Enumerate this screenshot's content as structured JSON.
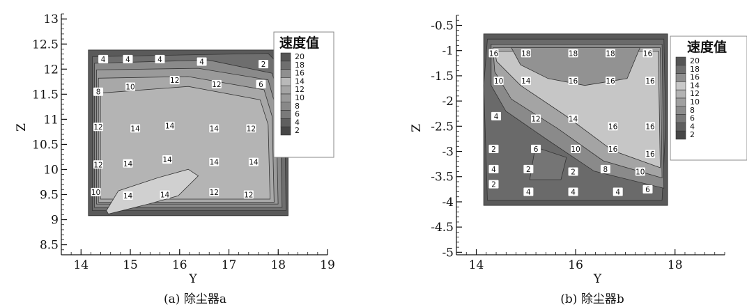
{
  "chart_data": [
    {
      "type": "heatmap",
      "id": "a",
      "caption": "(a) 除尘器a",
      "xlabel": "Y",
      "ylabel": "Z",
      "xlim": [
        13.6,
        19.0
      ],
      "ylim": [
        8.3,
        13.1
      ],
      "xticks": [
        "14",
        "15",
        "16",
        "17",
        "18",
        "19"
      ],
      "xtick_values": [
        14,
        15,
        16,
        17,
        18,
        19
      ],
      "yticks": [
        "8.5",
        "9",
        "9.5",
        "10",
        "10.5",
        "11",
        "11.5",
        "12",
        "12.5",
        "13"
      ],
      "ytick_values": [
        8.5,
        9,
        9.5,
        10,
        10.5,
        11,
        11.5,
        12,
        12.5,
        13
      ],
      "domain": {
        "x": [
          14.15,
          18.2
        ],
        "y": [
          9.08,
          12.38
        ]
      },
      "legend": {
        "title": "速度值",
        "levels": [
          "20",
          "18",
          "16",
          "14",
          "12",
          "10",
          "8",
          "6",
          "4",
          "2"
        ],
        "colors": [
          "#555555",
          "#6f6f6f",
          "#8f8f8f",
          "#b9b9b9",
          "#a5a5a5",
          "#9a9a9a",
          "#888888",
          "#7a7a7a",
          "#5f5f5f",
          "#474747"
        ]
      },
      "contour_labels": [
        {
          "text": "4",
          "x": 14.45,
          "y": 12.2
        },
        {
          "text": "4",
          "x": 14.95,
          "y": 12.2
        },
        {
          "text": "4",
          "x": 15.6,
          "y": 12.2
        },
        {
          "text": "4",
          "x": 16.45,
          "y": 12.15
        },
        {
          "text": "2",
          "x": 17.7,
          "y": 12.1
        },
        {
          "text": "8",
          "x": 14.35,
          "y": 11.55
        },
        {
          "text": "10",
          "x": 15.0,
          "y": 11.65
        },
        {
          "text": "12",
          "x": 15.9,
          "y": 11.78
        },
        {
          "text": "12",
          "x": 16.75,
          "y": 11.7
        },
        {
          "text": "6",
          "x": 17.65,
          "y": 11.7
        },
        {
          "text": "12",
          "x": 14.35,
          "y": 10.85
        },
        {
          "text": "14",
          "x": 15.1,
          "y": 10.82
        },
        {
          "text": "14",
          "x": 15.8,
          "y": 10.87
        },
        {
          "text": "14",
          "x": 16.7,
          "y": 10.82
        },
        {
          "text": "12",
          "x": 17.45,
          "y": 10.82
        },
        {
          "text": "12",
          "x": 14.35,
          "y": 10.1
        },
        {
          "text": "14",
          "x": 14.95,
          "y": 10.12
        },
        {
          "text": "14",
          "x": 15.75,
          "y": 10.2
        },
        {
          "text": "14",
          "x": 16.7,
          "y": 10.15
        },
        {
          "text": "14",
          "x": 17.5,
          "y": 10.15
        },
        {
          "text": "10",
          "x": 14.3,
          "y": 9.55
        },
        {
          "text": "14",
          "x": 14.95,
          "y": 9.48
        },
        {
          "text": "14",
          "x": 15.7,
          "y": 9.5
        },
        {
          "text": "12",
          "x": 16.7,
          "y": 9.55
        },
        {
          "text": "12",
          "x": 17.4,
          "y": 9.5
        }
      ]
    },
    {
      "type": "heatmap",
      "id": "b",
      "caption": "(b) 除尘器b",
      "xlabel": "Y",
      "ylabel": "Z",
      "xlim": [
        13.6,
        19.0
      ],
      "ylim": [
        -5.05,
        -0.3
      ],
      "xticks": [
        "14",
        "16",
        "18"
      ],
      "xtick_values": [
        14,
        16,
        18
      ],
      "yticks": [
        "-0.5",
        "-1",
        "-1.5",
        "-2",
        "-2.5",
        "-3",
        "-3.5",
        "-4",
        "-4.5",
        "-5"
      ],
      "ytick_values": [
        -0.5,
        -1,
        -1.5,
        -2,
        -2.5,
        -3,
        -3.5,
        -4,
        -4.5,
        -5
      ],
      "domain": {
        "x": [
          14.15,
          17.85
        ],
        "y": [
          -4.07,
          -0.67
        ]
      },
      "legend": {
        "title": "速度值",
        "levels": [
          "20",
          "18",
          "16",
          "14",
          "12",
          "10",
          "8",
          "6",
          "4",
          "2"
        ],
        "colors": [
          "#555555",
          "#6f6f6f",
          "#8f8f8f",
          "#c8c8c8",
          "#b3b3b3",
          "#a0a0a0",
          "#8c8c8c",
          "#797979",
          "#5e5e5e",
          "#464646"
        ]
      },
      "contour_labels": [
        {
          "text": "16",
          "x": 14.35,
          "y": -1.05
        },
        {
          "text": "18",
          "x": 15.0,
          "y": -1.05
        },
        {
          "text": "18",
          "x": 15.95,
          "y": -1.05
        },
        {
          "text": "18",
          "x": 16.7,
          "y": -1.05
        },
        {
          "text": "16",
          "x": 17.45,
          "y": -1.05
        },
        {
          "text": "10",
          "x": 14.45,
          "y": -1.6
        },
        {
          "text": "14",
          "x": 15.0,
          "y": -1.6
        },
        {
          "text": "16",
          "x": 15.95,
          "y": -1.6
        },
        {
          "text": "16",
          "x": 16.7,
          "y": -1.6
        },
        {
          "text": "16",
          "x": 17.5,
          "y": -1.6
        },
        {
          "text": "4",
          "x": 14.4,
          "y": -2.3
        },
        {
          "text": "12",
          "x": 15.2,
          "y": -2.35
        },
        {
          "text": "14",
          "x": 15.95,
          "y": -2.35
        },
        {
          "text": "16",
          "x": 16.75,
          "y": -2.5
        },
        {
          "text": "16",
          "x": 17.5,
          "y": -2.5
        },
        {
          "text": "2",
          "x": 14.35,
          "y": -2.95
        },
        {
          "text": "6",
          "x": 15.2,
          "y": -2.95
        },
        {
          "text": "10",
          "x": 16.0,
          "y": -2.95
        },
        {
          "text": "16",
          "x": 16.75,
          "y": -2.95
        },
        {
          "text": "16",
          "x": 17.5,
          "y": -3.05
        },
        {
          "text": "4",
          "x": 14.35,
          "y": -3.35
        },
        {
          "text": "2",
          "x": 15.05,
          "y": -3.35
        },
        {
          "text": "2",
          "x": 15.95,
          "y": -3.4
        },
        {
          "text": "8",
          "x": 16.6,
          "y": -3.35
        },
        {
          "text": "10",
          "x": 17.3,
          "y": -3.4
        },
        {
          "text": "2",
          "x": 14.35,
          "y": -3.65
        },
        {
          "text": "4",
          "x": 15.05,
          "y": -3.8
        },
        {
          "text": "4",
          "x": 15.95,
          "y": -3.8
        },
        {
          "text": "4",
          "x": 16.85,
          "y": -3.8
        },
        {
          "text": "6",
          "x": 17.45,
          "y": -3.75
        }
      ]
    }
  ]
}
